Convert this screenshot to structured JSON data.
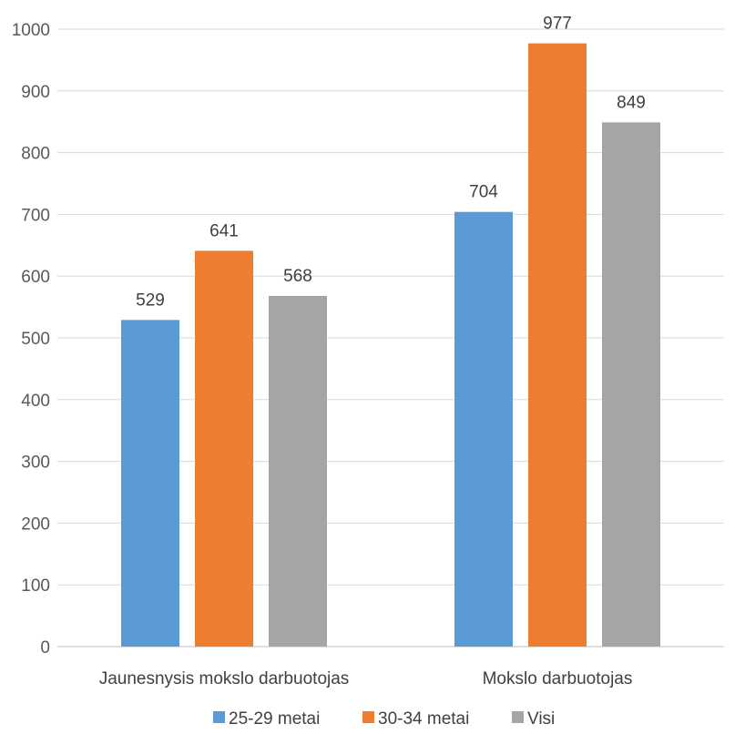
{
  "chart_data": {
    "type": "bar",
    "categories": [
      "Jaunesnysis mokslo darbuotojas",
      "Mokslo darbuotojas"
    ],
    "series": [
      {
        "name": "25-29 metai",
        "values": [
          529,
          704
        ],
        "color": "#5b9bd5"
      },
      {
        "name": "30-34 metai",
        "values": [
          641,
          977
        ],
        "color": "#ed7d31"
      },
      {
        "name": "Visi",
        "values": [
          568,
          849
        ],
        "color": "#a5a5a5"
      }
    ],
    "ylim": [
      0,
      1000
    ],
    "yticks": [
      0,
      100,
      200,
      300,
      400,
      500,
      600,
      700,
      800,
      900,
      1000
    ],
    "title": "",
    "xlabel": "",
    "ylabel": "",
    "grid": true,
    "legend_position": "bottom"
  }
}
